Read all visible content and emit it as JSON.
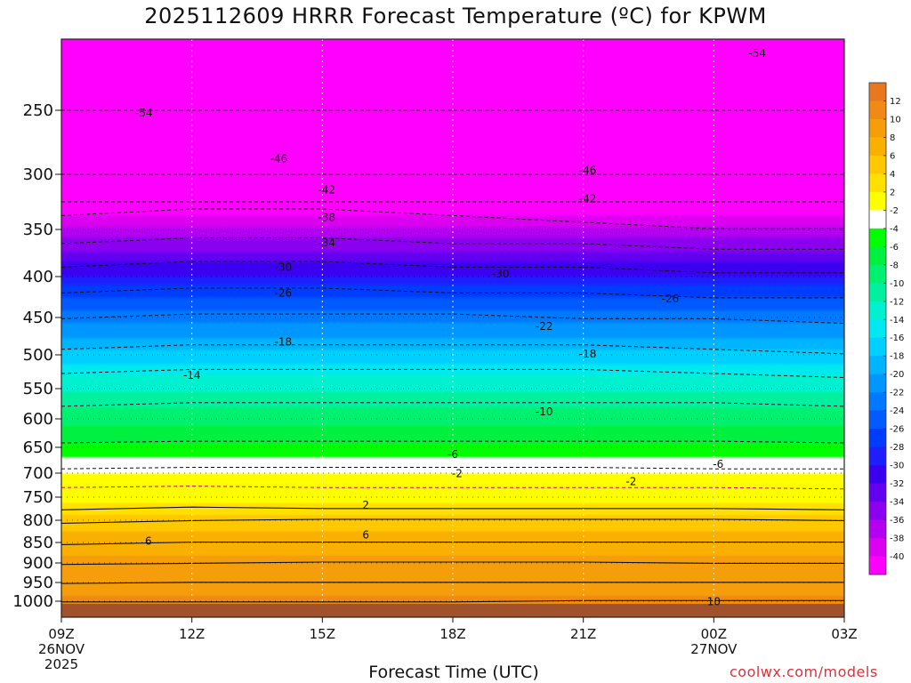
{
  "chart_data": {
    "type": "contour",
    "title": "2025112609 HRRR Forecast Temperature (ºC) for KPWM",
    "xlabel": "Forecast Time (UTC)",
    "ylabel": "",
    "credit": "coolwx.com/models",
    "x_ticks": [
      {
        "hour": 9,
        "lines": [
          "09Z",
          "26NOV",
          "2025"
        ]
      },
      {
        "hour": 12,
        "lines": [
          "12Z"
        ]
      },
      {
        "hour": 15,
        "lines": [
          "15Z"
        ]
      },
      {
        "hour": 18,
        "lines": [
          "18Z"
        ]
      },
      {
        "hour": 21,
        "lines": [
          "21Z"
        ]
      },
      {
        "hour": 24,
        "lines": [
          "00Z",
          "27NOV"
        ]
      },
      {
        "hour": 27,
        "lines": [
          "03Z"
        ]
      }
    ],
    "xlim": [
      9,
      27
    ],
    "y_ticks": [
      250,
      300,
      350,
      400,
      450,
      500,
      550,
      600,
      650,
      700,
      750,
      800,
      850,
      900,
      950,
      1000
    ],
    "ylim": [
      200,
      1030
    ],
    "ground_level_hpa": 1005,
    "colorbar": {
      "labels": [
        "12",
        "10",
        "8",
        "6",
        "4",
        "2",
        "-2",
        "-4",
        "-6",
        "-8",
        "-10",
        "-12",
        "-14",
        "-16",
        "-18",
        "-20",
        "-22",
        "-24",
        "-26",
        "-28",
        "-30",
        "-32",
        "-34",
        "-36",
        "-38",
        "-40"
      ],
      "bins": [
        {
          "max": 14,
          "color": "#e8781e"
        },
        {
          "max": 12,
          "color": "#f08a14"
        },
        {
          "max": 10,
          "color": "#f59d0a"
        },
        {
          "max": 8,
          "color": "#fab000"
        },
        {
          "max": 6,
          "color": "#ffc800"
        },
        {
          "max": 4,
          "color": "#ffe000"
        },
        {
          "max": 2,
          "color": "#ffff00"
        },
        {
          "max": -2,
          "color": "#ffffff"
        },
        {
          "max": -4,
          "color": "#00ff00"
        },
        {
          "max": -6,
          "color": "#00f040"
        },
        {
          "max": -8,
          "color": "#00f070"
        },
        {
          "max": -10,
          "color": "#00f0a0"
        },
        {
          "max": -12,
          "color": "#00f0d0"
        },
        {
          "max": -14,
          "color": "#00e8f0"
        },
        {
          "max": -16,
          "color": "#00d0ff"
        },
        {
          "max": -18,
          "color": "#00b4ff"
        },
        {
          "max": -20,
          "color": "#0096ff"
        },
        {
          "max": -22,
          "color": "#0078ff"
        },
        {
          "max": -24,
          "color": "#005aff"
        },
        {
          "max": -26,
          "color": "#003cff"
        },
        {
          "max": -28,
          "color": "#1e1eff"
        },
        {
          "max": -30,
          "color": "#3c00f0"
        },
        {
          "max": -32,
          "color": "#6400f0"
        },
        {
          "max": -34,
          "color": "#8c00f0"
        },
        {
          "max": -36,
          "color": "#b400f0"
        },
        {
          "max": -38,
          "color": "#dc00f0"
        },
        {
          "max": -40,
          "color": "#ff00ff"
        }
      ]
    },
    "ground_color": "#a0522d",
    "levels": [
      {
        "p": 250,
        "temps": [
          -54,
          -54,
          -54,
          -54,
          -54,
          -54,
          -54
        ]
      },
      {
        "p": 300,
        "temps": [
          -46,
          -46,
          -46,
          -46,
          -46,
          -46,
          -46
        ]
      },
      {
        "p": 325,
        "temps": [
          -42,
          -42,
          -42,
          -42,
          -42,
          -42,
          -42
        ]
      },
      {
        "p": 340,
        "temps": [
          -39,
          -38,
          -38,
          -39,
          -40,
          -41,
          -41
        ]
      },
      {
        "p": 365,
        "temps": [
          -35,
          -34,
          -34,
          -35,
          -35,
          -36,
          -36
        ]
      },
      {
        "p": 390,
        "temps": [
          -31,
          -30,
          -30,
          -31,
          -31,
          -32,
          -32
        ]
      },
      {
        "p": 420,
        "temps": [
          -27,
          -26,
          -26,
          -27,
          -27,
          -28,
          -28
        ]
      },
      {
        "p": 450,
        "temps": [
          -23,
          -22,
          -22,
          -22,
          -23,
          -23,
          -24
        ]
      },
      {
        "p": 490,
        "temps": [
          -19,
          -18,
          -18,
          -18,
          -18,
          -19,
          -20
        ]
      },
      {
        "p": 525,
        "temps": [
          -15,
          -14,
          -14,
          -14,
          -14,
          -15,
          -16
        ]
      },
      {
        "p": 575,
        "temps": [
          -11,
          -10,
          -10,
          -10,
          -10,
          -10,
          -11
        ]
      },
      {
        "p": 640,
        "temps": [
          -6.5,
          -6,
          -6,
          -6,
          -6,
          -6,
          -6.5
        ]
      },
      {
        "p": 690,
        "temps": [
          -3,
          -2.5,
          -2.5,
          -2.5,
          -2.5,
          -3,
          -3
        ]
      },
      {
        "p": 730,
        "temps": [
          0,
          0.5,
          0,
          0,
          0,
          0,
          -0.5
        ]
      },
      {
        "p": 775,
        "temps": [
          2.5,
          3.5,
          3,
          3,
          3,
          3,
          2.5
        ]
      },
      {
        "p": 800,
        "temps": [
          4,
          5,
          5.5,
          5.5,
          5.5,
          5.5,
          5
        ]
      },
      {
        "p": 850,
        "temps": [
          6,
          7,
          7,
          7,
          7,
          7,
          7
        ]
      },
      {
        "p": 900,
        "temps": [
          8,
          8.5,
          9,
          9,
          9,
          8.5,
          8.5
        ]
      },
      {
        "p": 950,
        "temps": [
          9,
          9.5,
          9.5,
          9.5,
          9.5,
          9.5,
          9.5
        ]
      },
      {
        "p": 1000,
        "temps": [
          10,
          10,
          10,
          10,
          10.5,
          10.5,
          10.5
        ]
      }
    ],
    "contour_labels": [
      {
        "text": "-54",
        "hour": 10.9,
        "p": 252
      },
      {
        "text": "-54",
        "hour": 25.0,
        "p": 210
      },
      {
        "text": "-46",
        "hour": 14.0,
        "p": 288
      },
      {
        "text": "-46",
        "hour": 21.1,
        "p": 297
      },
      {
        "text": "-42",
        "hour": 15.1,
        "p": 314
      },
      {
        "text": "-42",
        "hour": 21.1,
        "p": 322
      },
      {
        "text": "-38",
        "hour": 15.1,
        "p": 339
      },
      {
        "text": "-34",
        "hour": 15.1,
        "p": 364
      },
      {
        "text": "-30",
        "hour": 14.1,
        "p": 390
      },
      {
        "text": "-30",
        "hour": 19.1,
        "p": 397
      },
      {
        "text": "-26",
        "hour": 14.1,
        "p": 420
      },
      {
        "text": "-26",
        "hour": 23.0,
        "p": 427
      },
      {
        "text": "-22",
        "hour": 20.1,
        "p": 462
      },
      {
        "text": "-18",
        "hour": 14.1,
        "p": 483
      },
      {
        "text": "-18",
        "hour": 21.1,
        "p": 499
      },
      {
        "text": "-14",
        "hour": 12.0,
        "p": 530
      },
      {
        "text": "-10",
        "hour": 20.1,
        "p": 588
      },
      {
        "text": "-6",
        "hour": 18.0,
        "p": 664
      },
      {
        "text": "-6",
        "hour": 24.1,
        "p": 683
      },
      {
        "text": "-2",
        "hour": 18.1,
        "p": 701
      },
      {
        "text": "-2",
        "hour": 22.1,
        "p": 718
      },
      {
        "text": "2",
        "hour": 16.0,
        "p": 767
      },
      {
        "text": "6",
        "hour": 11.0,
        "p": 847
      },
      {
        "text": "6",
        "hour": 16.0,
        "p": 833
      },
      {
        "text": "10",
        "hour": 24.0,
        "p": 1001
      }
    ]
  }
}
